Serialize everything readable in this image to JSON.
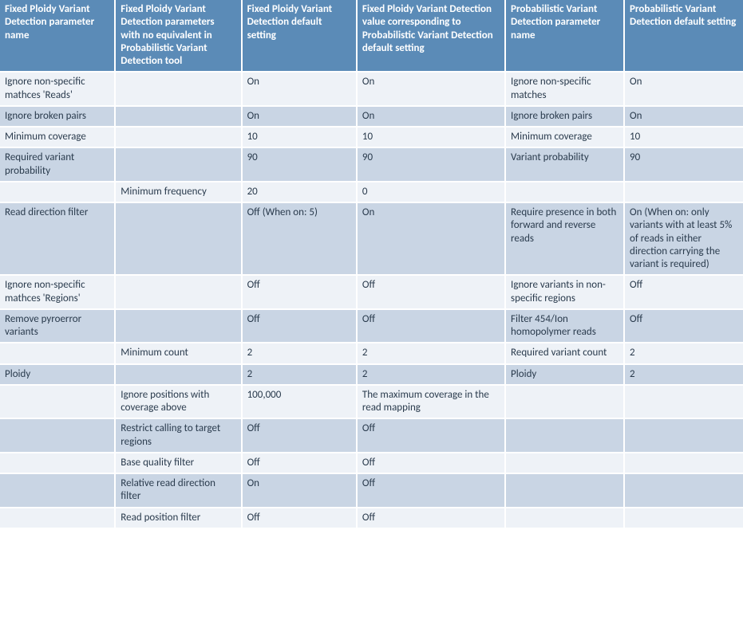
{
  "table": {
    "col_widths_pct": [
      15.5,
      17,
      15.5,
      20,
      16,
      16
    ],
    "header_bg": "#5b8bb7",
    "header_fg": "#ffffff",
    "band_a_bg": "#eef2f7",
    "band_b_bg": "#c9d5e4",
    "text_color": "#2a3b4d",
    "font_size_pt": 10,
    "columns": [
      "Fixed Ploidy Variant Detection parameter name",
      "Fixed Ploidy Variant Detection parameters with no equivalent in Probabilistic Variant Detection tool",
      "Fixed Ploidy Variant Detection default setting",
      "Fixed Ploidy Variant Detection value corresponding to Probabilistic Variant Detection default setting",
      "Probabilistic Variant Detection parameter name",
      "Probabilistic Variant Detection default setting"
    ],
    "rows": [
      [
        "Ignore non-specific mathces 'Reads'",
        "",
        "On",
        "On",
        "Ignore non-specific matches",
        "On"
      ],
      [
        "Ignore broken pairs",
        "",
        "On",
        "On",
        "Ignore broken pairs",
        "On"
      ],
      [
        "Minimum coverage",
        "",
        "10",
        "10",
        "Minimum coverage",
        "10"
      ],
      [
        "Required variant probability",
        "",
        "90",
        "90",
        "Variant probability",
        "90"
      ],
      [
        "",
        "Minimum frequency",
        "20",
        "0",
        "",
        ""
      ],
      [
        "Read direction filter",
        "",
        "Off (When on: 5)",
        "On",
        "Require presence in both forward and reverse reads",
        "On (When on: only variants with at least 5% of reads in either direction carrying the variant is required)"
      ],
      [
        "Ignore non-specific mathces 'Regions'",
        "",
        "Off",
        "Off",
        "Ignore variants in non-specific regions",
        "Off"
      ],
      [
        "Remove pyroerror variants",
        "",
        "Off",
        "Off",
        "Filter 454/Ion homopolymer reads",
        "Off"
      ],
      [
        "",
        "Minimum count",
        "2",
        "2",
        "Required variant count",
        "2"
      ],
      [
        "Ploidy",
        "",
        "2",
        "2",
        "Ploidy",
        "2"
      ],
      [
        "",
        "Ignore positions with coverage above",
        "100,000",
        "The maximum coverage in the read mapping",
        "",
        ""
      ],
      [
        "",
        "Restrict calling to target regions",
        "Off",
        "Off",
        "",
        ""
      ],
      [
        "",
        "Base quality filter",
        "Off",
        "Off",
        "",
        ""
      ],
      [
        "",
        "Relative read direction filter",
        "On",
        "Off",
        "",
        ""
      ],
      [
        "",
        "Read position filter",
        "Off",
        "Off",
        "",
        ""
      ]
    ]
  }
}
